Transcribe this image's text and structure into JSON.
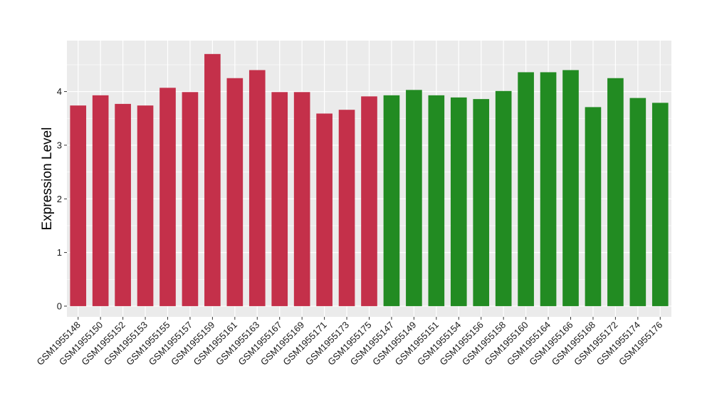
{
  "chart_data": {
    "type": "bar",
    "title": "",
    "xlabel": "",
    "ylabel": "Expression Level",
    "ylim": [
      -0.2,
      4.95
    ],
    "yticks": [
      0,
      1,
      2,
      3,
      4
    ],
    "grid": true,
    "legend": "none",
    "colors": {
      "group_a": "#c4304a",
      "group_b": "#228b22",
      "panel_bg": "#ebebeb",
      "grid": "#ffffff"
    },
    "categories": [
      "GSM1955148",
      "GSM1955150",
      "GSM1955152",
      "GSM1955153",
      "GSM1955155",
      "GSM1955157",
      "GSM1955159",
      "GSM1955161",
      "GSM1955163",
      "GSM1955167",
      "GSM1955169",
      "GSM1955171",
      "GSM1955173",
      "GSM1955175",
      "GSM1955147",
      "GSM1955149",
      "GSM1955151",
      "GSM1955154",
      "GSM1955156",
      "GSM1955158",
      "GSM1955160",
      "GSM1955164",
      "GSM1955166",
      "GSM1955168",
      "GSM1955172",
      "GSM1955174",
      "GSM1955176"
    ],
    "values": [
      3.74,
      3.93,
      3.77,
      3.74,
      4.07,
      3.99,
      4.7,
      4.25,
      4.4,
      3.99,
      3.99,
      3.59,
      3.66,
      3.91,
      3.93,
      4.03,
      3.93,
      3.89,
      3.86,
      4.01,
      4.36,
      4.36,
      4.4,
      3.71,
      4.25,
      3.88,
      3.79
    ],
    "bar_groups": [
      "a",
      "a",
      "a",
      "a",
      "a",
      "a",
      "a",
      "a",
      "a",
      "a",
      "a",
      "a",
      "a",
      "a",
      "b",
      "b",
      "b",
      "b",
      "b",
      "b",
      "b",
      "b",
      "b",
      "b",
      "b",
      "b",
      "b"
    ]
  }
}
